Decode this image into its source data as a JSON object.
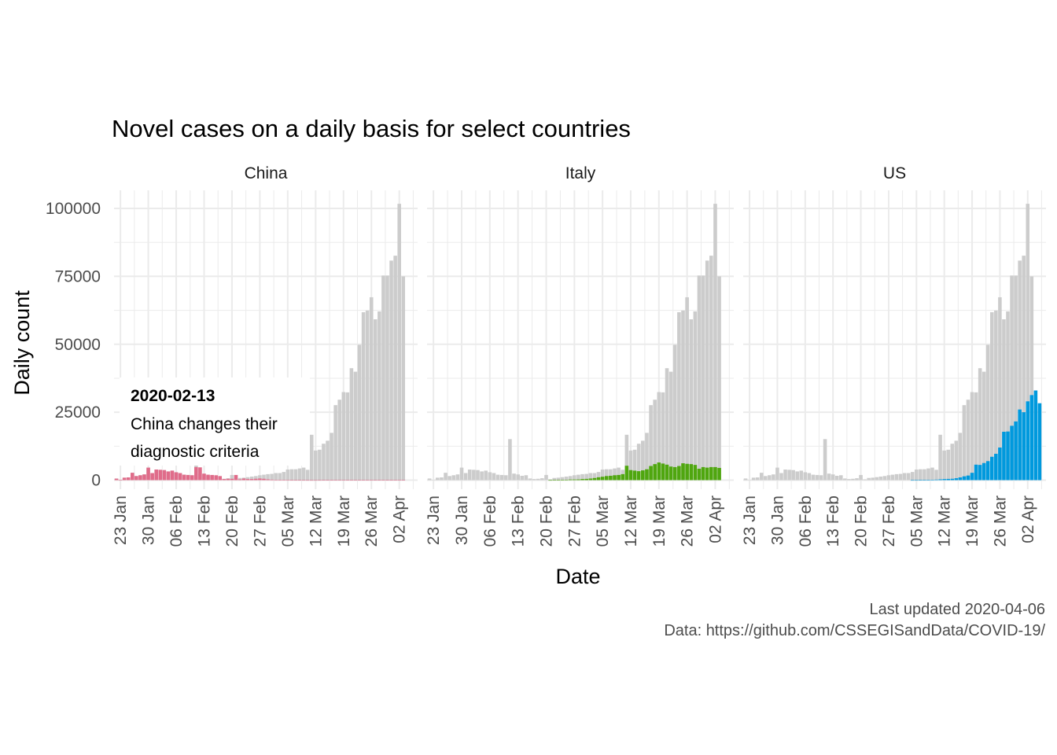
{
  "chart_data": {
    "type": "bar",
    "title": "Novel cases on a daily basis for select countries",
    "xlabel": "Date",
    "ylabel": "Daily count",
    "ylim": [
      0,
      106000
    ],
    "y_ticks": [
      "0",
      "25000",
      "50000",
      "75000",
      "100000"
    ],
    "y_tick_values": [
      0,
      25000,
      50000,
      75000,
      100000
    ],
    "x_tick_labels": [
      "23 Jan",
      "30 Jan",
      "06 Feb",
      "13 Feb",
      "20 Feb",
      "27 Feb",
      "05 Mar",
      "12 Mar",
      "19 Mar",
      "26 Mar",
      "02 Apr"
    ],
    "x_tick_dates": [
      "2020-01-23",
      "2020-01-30",
      "2020-02-06",
      "2020-02-13",
      "2020-02-20",
      "2020-02-27",
      "2020-03-05",
      "2020-03-12",
      "2020-03-19",
      "2020-03-26",
      "2020-04-02"
    ],
    "x_range": [
      "2020-01-22",
      "2020-04-06"
    ],
    "grid": true,
    "background_series": {
      "description_color": "#cccccc",
      "x_start": "2020-01-22",
      "values": [
        600,
        100,
        900,
        1000,
        2700,
        1500,
        1800,
        2100,
        4600,
        2600,
        3900,
        3800,
        3700,
        3200,
        3500,
        2900,
        2600,
        2000,
        1900,
        1800,
        15100,
        2400,
        2100,
        1600,
        1800,
        600,
        400,
        500,
        700,
        1900,
        300,
        800,
        900,
        1100,
        1300,
        1500,
        1800,
        2000,
        2200,
        2300,
        2600,
        2600,
        3000,
        3900,
        4000,
        4000,
        4300,
        4600,
        3800,
        16700,
        10900,
        11200,
        13400,
        14500,
        17400,
        27600,
        29600,
        32400,
        32300,
        41200,
        39900,
        49800,
        61800,
        62400,
        67300,
        59200,
        62100,
        75300,
        75300,
        80800,
        82600,
        101700,
        75000
      ]
    },
    "series": [
      {
        "name": "China",
        "color": "#e06c8a",
        "x_start": "2020-01-22",
        "values": [
          550,
          100,
          900,
          1000,
          2700,
          1500,
          1800,
          2100,
          4600,
          2600,
          3900,
          3800,
          3700,
          3200,
          3500,
          2900,
          2600,
          2000,
          1900,
          1800,
          4800,
          4700,
          2400,
          2000,
          1900,
          1800,
          1500,
          400,
          500,
          500,
          1900,
          300,
          600,
          400,
          400,
          500,
          600,
          500,
          300,
          200,
          150,
          130,
          120,
          100,
          60,
          40,
          30,
          20,
          15,
          10,
          10,
          20,
          30,
          30,
          40,
          50,
          60,
          50,
          40,
          40,
          40,
          50,
          50,
          60,
          60,
          50,
          40,
          40,
          30,
          35,
          40,
          40,
          30
        ]
      },
      {
        "name": "Italy",
        "color": "#4fa60f",
        "x_start": "2020-01-22",
        "values": [
          0,
          0,
          0,
          0,
          0,
          0,
          0,
          0,
          0,
          0,
          0,
          0,
          0,
          0,
          0,
          0,
          0,
          0,
          0,
          0,
          0,
          0,
          0,
          0,
          0,
          0,
          0,
          0,
          0,
          0,
          10,
          60,
          70,
          90,
          150,
          230,
          240,
          260,
          410,
          460,
          590,
          780,
          1050,
          1250,
          1500,
          1600,
          1800,
          1900,
          2200,
          5300,
          3700,
          3500,
          3300,
          3600,
          4000,
          5200,
          5900,
          6500,
          6100,
          5700,
          5000,
          4800,
          5200,
          6200,
          6000,
          5900,
          5600,
          4200,
          4800,
          4600,
          4800,
          4800,
          4500
        ]
      },
      {
        "name": "US",
        "color": "#0099dd",
        "x_start": "2020-01-22",
        "values": [
          0,
          0,
          0,
          0,
          0,
          0,
          0,
          0,
          0,
          0,
          0,
          0,
          0,
          0,
          0,
          0,
          0,
          0,
          0,
          0,
          0,
          0,
          0,
          0,
          0,
          0,
          0,
          0,
          0,
          0,
          0,
          0,
          0,
          0,
          0,
          0,
          0,
          0,
          0,
          0,
          0,
          0,
          10,
          20,
          30,
          60,
          100,
          150,
          200,
          300,
          400,
          450,
          500,
          700,
          1000,
          1400,
          1700,
          2700,
          5700,
          5600,
          6300,
          7000,
          8600,
          9700,
          12000,
          17800,
          17900,
          20000,
          21600,
          26000,
          25000,
          29000,
          31300,
          33000,
          28300
        ]
      }
    ],
    "facets": [
      "China",
      "Italy",
      "US"
    ],
    "annotation": {
      "facet": "China",
      "date_label": "2020-02-13",
      "line1": "China changes their",
      "line2": "diagnostic criteria"
    },
    "caption": {
      "line1": "Last updated 2020-04-06",
      "line2": "Data: https://github.com/CSSEGISandData/COVID-19/"
    }
  }
}
